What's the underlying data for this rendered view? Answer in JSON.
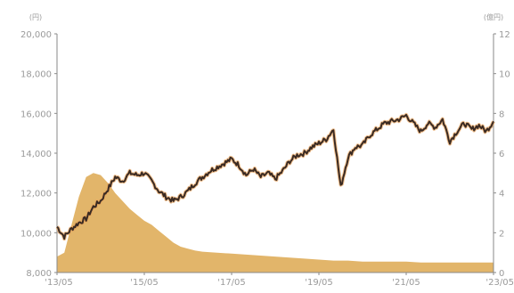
{
  "colors": {
    "line": "#3a2a22",
    "line_glow": "#e8a35b",
    "area": "#e2b56a",
    "axis": "#8a8a8a",
    "tick_text": "#9a9a9a",
    "title_fragment": "#b02a2a"
  },
  "chart_data": {
    "type": "line",
    "left_axis": {
      "unit": "(円)",
      "ylim": [
        8000,
        20000
      ],
      "ticks": [
        "8,000",
        "10,000",
        "12,000",
        "14,000",
        "16,000",
        "18,000",
        "20,000"
      ]
    },
    "right_axis": {
      "unit": "(億円)",
      "ylim": [
        0,
        12
      ],
      "ticks": [
        "0",
        "2",
        "4",
        "6",
        "8",
        "10",
        "12"
      ]
    },
    "x_ticks": [
      "'13/05",
      "'15/05",
      "'17/05",
      "'19/05",
      "'21/05",
      "'23/05"
    ],
    "x_tick_months": [
      0,
      24,
      48,
      72,
      96,
      120
    ],
    "series": [
      {
        "kind": "line",
        "axis": "left",
        "x": [
          0,
          2,
          4,
          6,
          8,
          10,
          12,
          14,
          16,
          18,
          20,
          22,
          24,
          26,
          28,
          30,
          32,
          34,
          36,
          38,
          40,
          42,
          44,
          46,
          48,
          50,
          52,
          54,
          56,
          58,
          60,
          62,
          64,
          66,
          68,
          70,
          72,
          74,
          76,
          78,
          80,
          82,
          84,
          86,
          88,
          90,
          92,
          94,
          96,
          98,
          100,
          102,
          104,
          106,
          108,
          110,
          112,
          114,
          116,
          118,
          120
        ],
        "values": [
          10300,
          9800,
          10200,
          10500,
          10700,
          11300,
          11600,
          12200,
          12800,
          12600,
          13000,
          12900,
          13000,
          12600,
          12100,
          11800,
          11600,
          11800,
          12100,
          12500,
          12800,
          13100,
          13300,
          13500,
          13700,
          13400,
          12900,
          13200,
          12800,
          13000,
          12700,
          13100,
          13600,
          13900,
          14000,
          14300,
          14500,
          14700,
          15200,
          12300,
          13800,
          14300,
          14400,
          14900,
          15200,
          15500,
          15600,
          15700,
          15900,
          15500,
          15100,
          15500,
          15300,
          15700,
          14600,
          15100,
          15500,
          15200,
          15400,
          15100,
          15600
        ]
      },
      {
        "kind": "area",
        "axis": "right",
        "x": [
          0,
          2,
          4,
          6,
          8,
          10,
          12,
          14,
          16,
          18,
          20,
          22,
          24,
          26,
          28,
          30,
          32,
          34,
          36,
          38,
          40,
          44,
          48,
          52,
          56,
          60,
          64,
          68,
          72,
          76,
          80,
          84,
          88,
          92,
          96,
          100,
          104,
          108,
          112,
          116,
          120
        ],
        "values": [
          0.8,
          1.0,
          2.4,
          3.8,
          4.8,
          5.0,
          4.9,
          4.5,
          4.0,
          3.6,
          3.2,
          2.9,
          2.6,
          2.4,
          2.1,
          1.8,
          1.5,
          1.3,
          1.2,
          1.1,
          1.05,
          1.0,
          0.95,
          0.9,
          0.85,
          0.8,
          0.75,
          0.7,
          0.65,
          0.6,
          0.6,
          0.55,
          0.55,
          0.55,
          0.55,
          0.5,
          0.5,
          0.5,
          0.5,
          0.5,
          0.5
        ]
      }
    ]
  }
}
